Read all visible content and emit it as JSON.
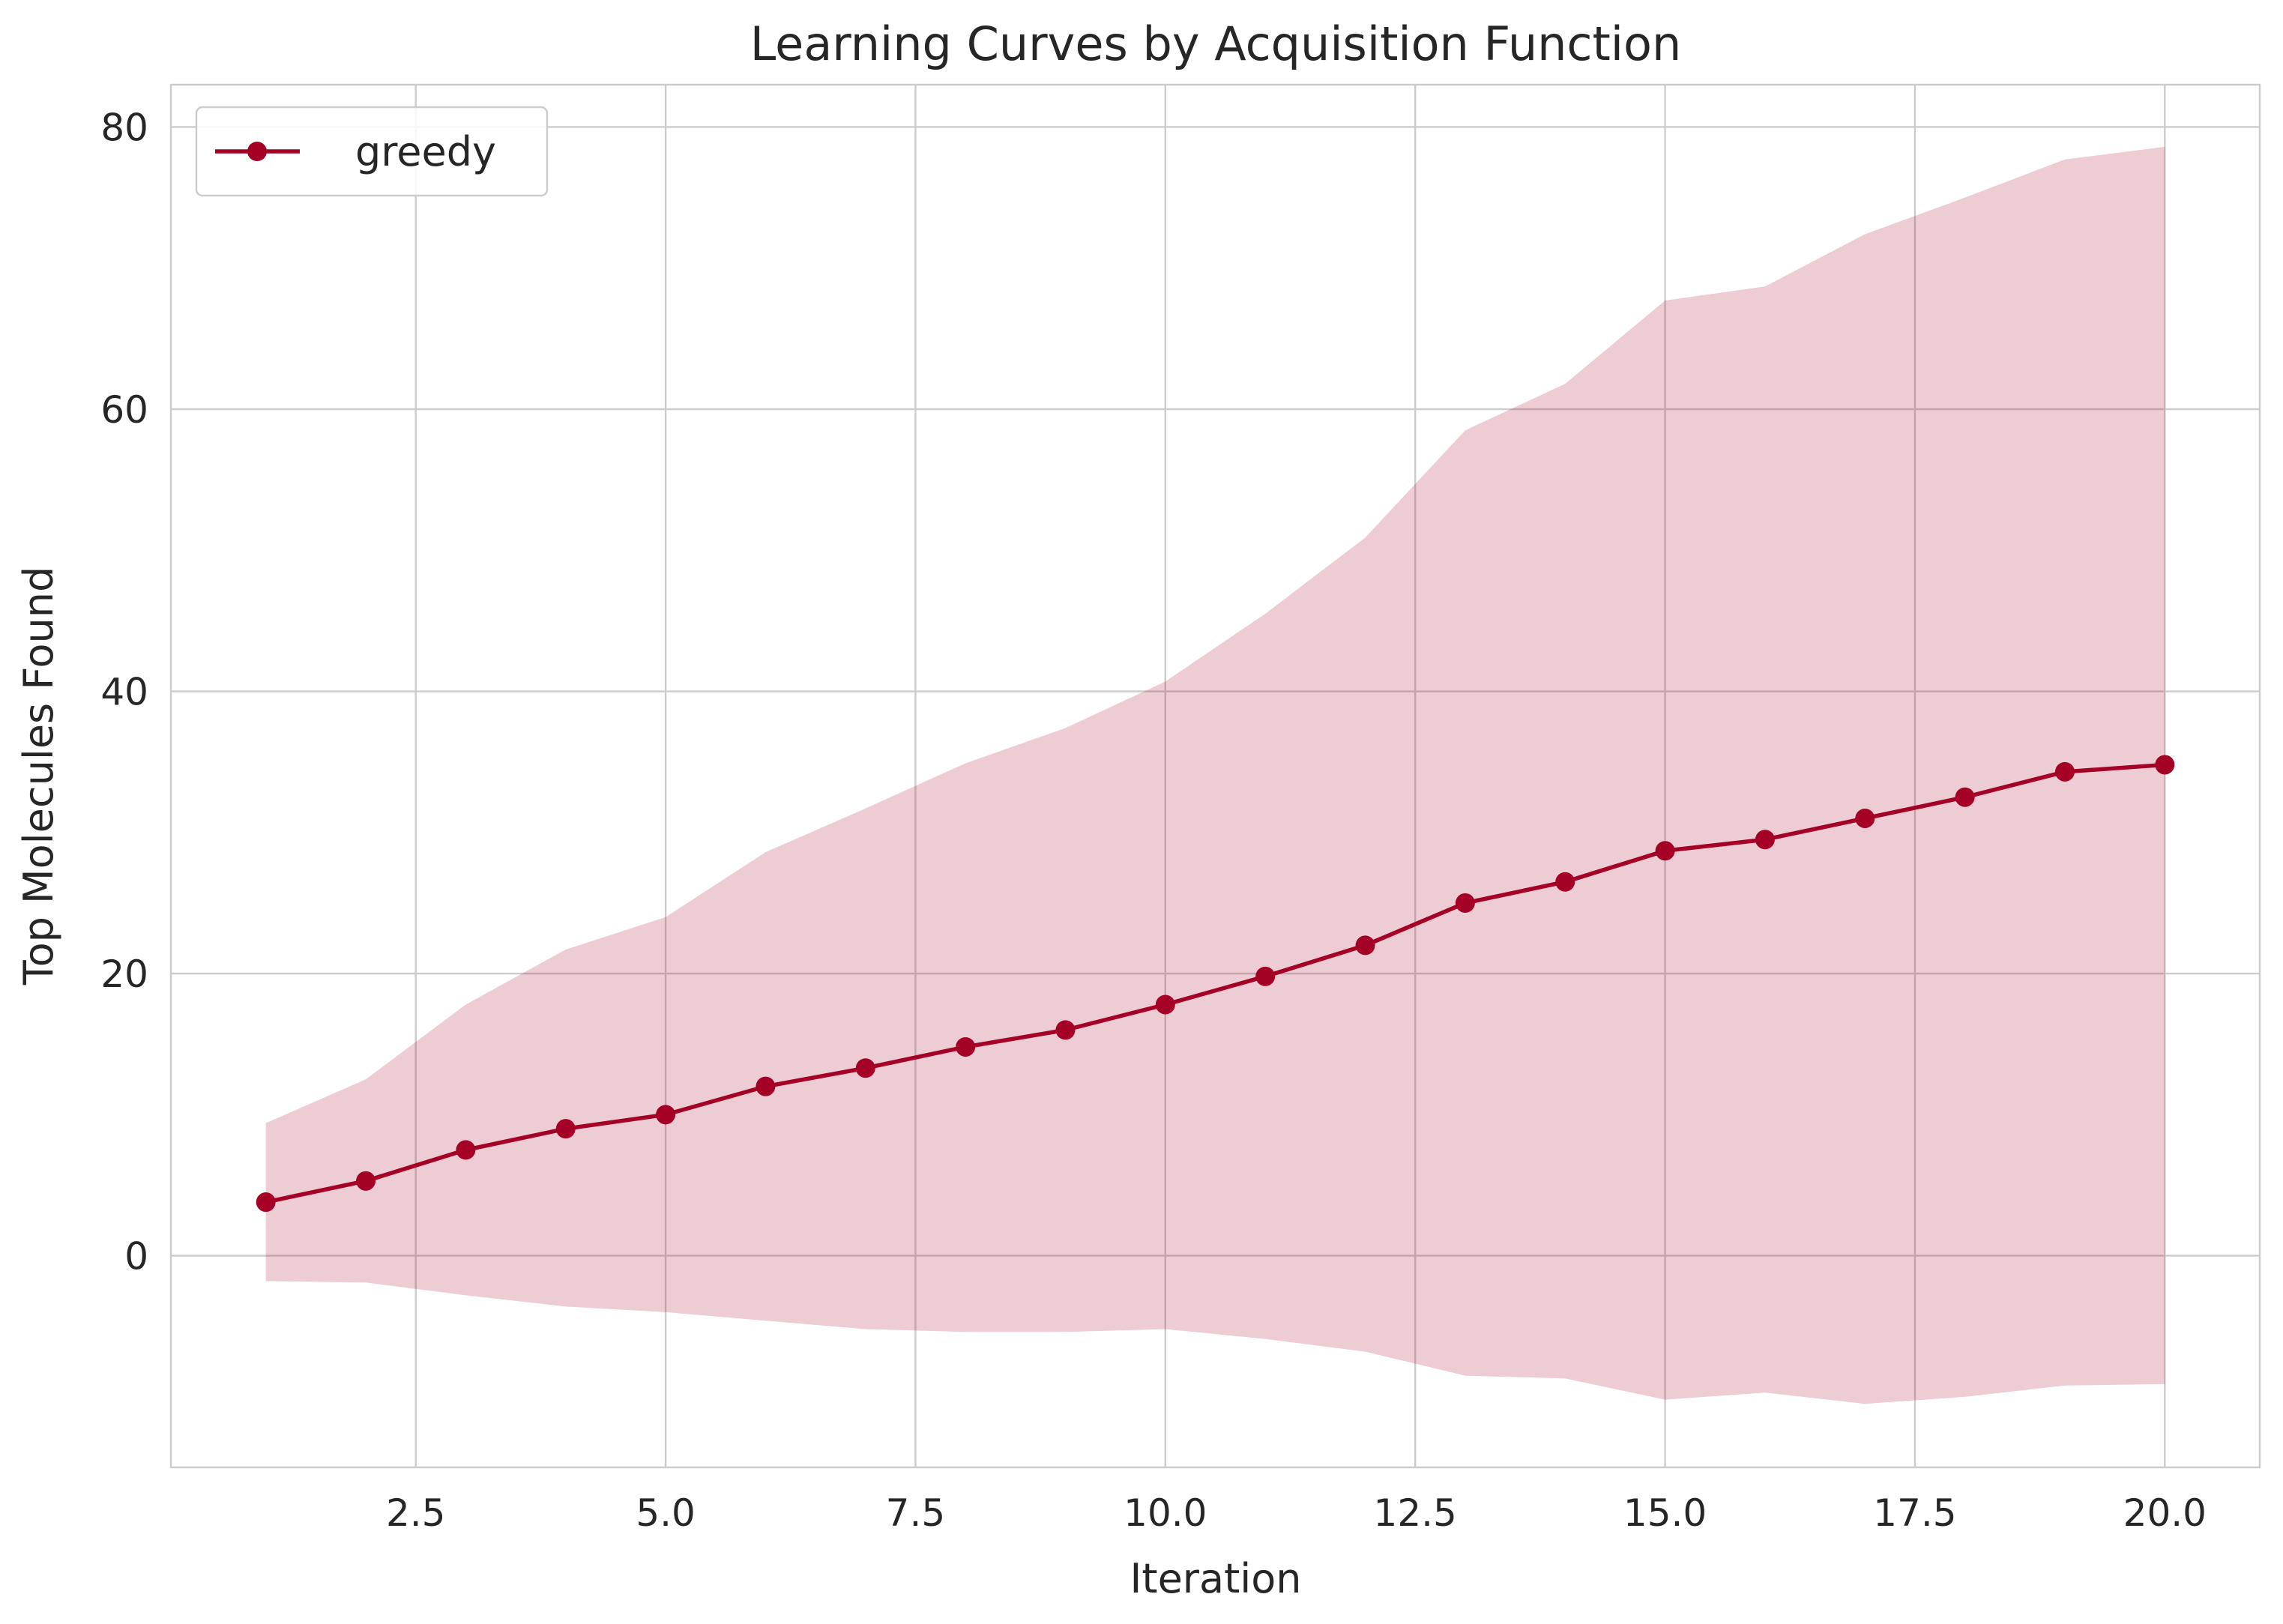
{
  "chart_data": {
    "type": "line",
    "title": "Learning Curves by Acquisition Function",
    "xlabel": "Iteration",
    "ylabel": "Top Molecules Found",
    "xlim": [
      0.05,
      20.95
    ],
    "ylim": [
      -15,
      83
    ],
    "xticks": [
      2.5,
      5.0,
      7.5,
      10.0,
      12.5,
      15.0,
      17.5,
      20.0
    ],
    "xtick_labels": [
      "2.5",
      "5.0",
      "7.5",
      "10.0",
      "12.5",
      "15.0",
      "17.5",
      "20.0"
    ],
    "yticks": [
      0,
      20,
      40,
      60,
      80
    ],
    "ytick_labels": [
      "0",
      "20",
      "40",
      "60",
      "80"
    ],
    "grid": true,
    "legend_position": "top-left",
    "series": [
      {
        "name": "greedy",
        "color": "#a50026",
        "band_color": "#a50026",
        "x": [
          1,
          2,
          3,
          4,
          5,
          6,
          7,
          8,
          9,
          10,
          11,
          12,
          13,
          14,
          15,
          16,
          17,
          18,
          19,
          20
        ],
        "y": [
          3.8,
          5.3,
          7.5,
          9.0,
          10.0,
          12.0,
          13.3,
          14.8,
          16.0,
          17.8,
          19.8,
          22.0,
          25.0,
          26.5,
          28.7,
          29.5,
          31.0,
          32.5,
          34.3,
          34.8
        ],
        "upper": [
          9.4,
          12.5,
          17.8,
          21.7,
          24.0,
          28.6,
          31.7,
          34.9,
          37.4,
          40.7,
          45.5,
          50.9,
          58.5,
          61.8,
          67.7,
          68.7,
          72.4,
          75.0,
          77.7,
          78.6
        ],
        "lower": [
          -1.8,
          -1.9,
          -2.8,
          -3.6,
          -4.0,
          -4.6,
          -5.2,
          -5.4,
          -5.4,
          -5.2,
          -5.9,
          -6.8,
          -8.5,
          -8.7,
          -10.2,
          -9.7,
          -10.5,
          -10.0,
          -9.2,
          -9.1
        ]
      }
    ]
  }
}
